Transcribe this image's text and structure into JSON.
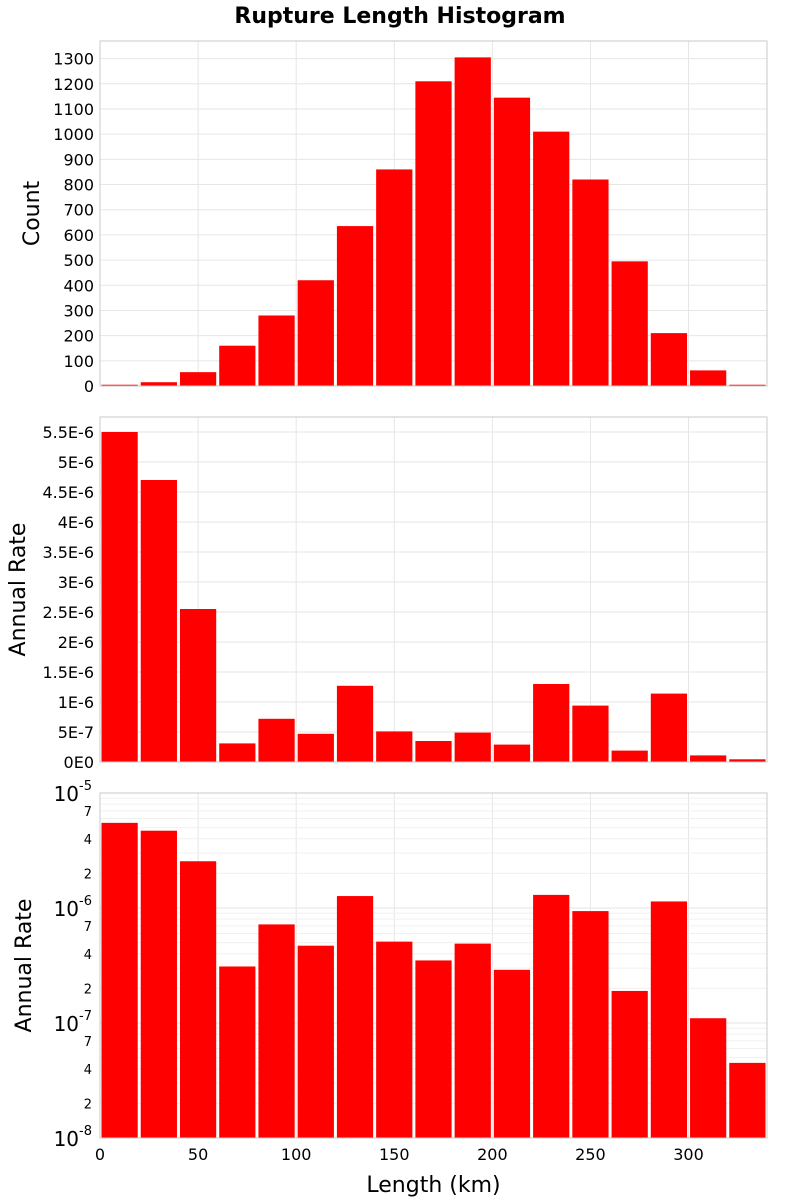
{
  "chart_title": "Rupture Length Histogram",
  "colors": {
    "bar": "#ff0000",
    "grid": "#e6e6e6",
    "frame": "#c8c8c8"
  },
  "chart_data": [
    {
      "type": "bar",
      "title": "Rupture Length Histogram",
      "xlabel": "",
      "ylabel": "Count",
      "bin_width": 20,
      "x": [
        0,
        20,
        40,
        60,
        80,
        100,
        120,
        140,
        160,
        180,
        200,
        220,
        240,
        260,
        280,
        300,
        320
      ],
      "values": [
        5,
        15,
        55,
        160,
        280,
        420,
        635,
        860,
        1210,
        1305,
        1145,
        1010,
        820,
        495,
        210,
        62,
        5
      ],
      "xlim": [
        0,
        340
      ],
      "ylim": [
        0,
        1370
      ],
      "yscale": "linear",
      "y_ticks": [
        0,
        100,
        200,
        300,
        400,
        500,
        600,
        700,
        800,
        900,
        1000,
        1100,
        1200,
        1300
      ],
      "y_tick_labels": [
        "0",
        "100",
        "200",
        "300",
        "400",
        "500",
        "600",
        "700",
        "800",
        "900",
        "1000",
        "1100",
        "1200",
        "1300"
      ],
      "x_ticks": [
        0,
        50,
        100,
        150,
        200,
        250,
        300
      ],
      "x_tick_labels": [],
      "grid": true
    },
    {
      "type": "bar",
      "xlabel": "",
      "ylabel": "Annual Rate",
      "bin_width": 20,
      "x": [
        0,
        20,
        40,
        60,
        80,
        100,
        120,
        140,
        160,
        180,
        200,
        220,
        240,
        260,
        280,
        300,
        320
      ],
      "values": [
        5.5e-06,
        4.7e-06,
        2.55e-06,
        3.1e-07,
        7.2e-07,
        4.7e-07,
        1.27e-06,
        5.1e-07,
        3.5e-07,
        4.9e-07,
        2.9e-07,
        1.3e-06,
        9.4e-07,
        1.9e-07,
        1.14e-06,
        1.1e-07,
        4.5e-08
      ],
      "xlim": [
        0,
        340
      ],
      "ylim": [
        0,
        5.75e-06
      ],
      "yscale": "linear",
      "y_ticks": [
        0,
        5e-07,
        1e-06,
        1.5e-06,
        2e-06,
        2.5e-06,
        3e-06,
        3.5e-06,
        4e-06,
        4.5e-06,
        5e-06,
        5.5e-06
      ],
      "y_tick_labels": [
        "0E0",
        "5E-7",
        "1E-6",
        "1.5E-6",
        "2E-6",
        "2.5E-6",
        "3E-6",
        "3.5E-6",
        "4E-6",
        "4.5E-6",
        "5E-6",
        "5.5E-6"
      ],
      "x_ticks": [
        0,
        50,
        100,
        150,
        200,
        250,
        300
      ],
      "x_tick_labels": [],
      "grid": true
    },
    {
      "type": "bar",
      "xlabel": "Length (km)",
      "ylabel": "Annual Rate",
      "bin_width": 20,
      "x": [
        0,
        20,
        40,
        60,
        80,
        100,
        120,
        140,
        160,
        180,
        200,
        220,
        240,
        260,
        280,
        300,
        320
      ],
      "values": [
        5.5e-06,
        4.7e-06,
        2.55e-06,
        3.1e-07,
        7.2e-07,
        4.7e-07,
        1.27e-06,
        5.1e-07,
        3.5e-07,
        4.9e-07,
        2.9e-07,
        1.3e-06,
        9.4e-07,
        1.9e-07,
        1.14e-06,
        1.1e-07,
        4.5e-08
      ],
      "xlim": [
        0,
        340
      ],
      "ylim": [
        1e-08,
        1e-05
      ],
      "yscale": "log",
      "y_major_ticks": [
        {
          "value": 1e-05,
          "base": "10",
          "exp": "-5"
        },
        {
          "value": 1e-06,
          "base": "10",
          "exp": "-6"
        },
        {
          "value": 1e-07,
          "base": "10",
          "exp": "-7"
        },
        {
          "value": 1e-08,
          "base": "10",
          "exp": "-8"
        }
      ],
      "y_minor_labels": [
        {
          "value": 7e-06,
          "label": "7"
        },
        {
          "value": 4e-06,
          "label": "4"
        },
        {
          "value": 2e-06,
          "label": "2"
        },
        {
          "value": 7e-07,
          "label": "7"
        },
        {
          "value": 4e-07,
          "label": "4"
        },
        {
          "value": 2e-07,
          "label": "2"
        },
        {
          "value": 7e-08,
          "label": "7"
        },
        {
          "value": 4e-08,
          "label": "4"
        },
        {
          "value": 2e-08,
          "label": "2"
        }
      ],
      "x_ticks": [
        0,
        50,
        100,
        150,
        200,
        250,
        300
      ],
      "x_tick_labels": [
        "0",
        "50",
        "100",
        "150",
        "200",
        "250",
        "300"
      ],
      "grid": true
    }
  ]
}
